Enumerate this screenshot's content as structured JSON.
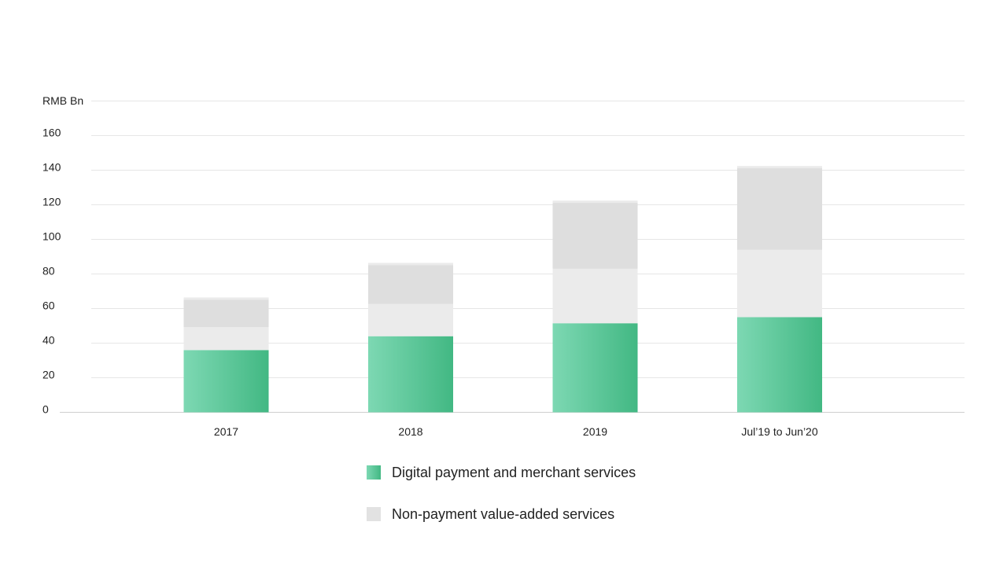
{
  "chart_data": {
    "type": "bar",
    "stacked": true,
    "unit_label": "RMB Bn",
    "categories": [
      "2017",
      "2018",
      "2019",
      "Jul’19 to Jun’20"
    ],
    "series": [
      {
        "name": "Digital payment and merchant services",
        "values": [
          36,
          44,
          51.5,
          55
        ],
        "color": "#4fc08f"
      },
      {
        "name": "Non-payment value-added services",
        "values": [
          29.5,
          41.5,
          70,
          86.5
        ],
        "color": "#e2e2e2"
      }
    ],
    "y_ticks": [
      "0",
      "20",
      "40",
      "60",
      "80",
      "100",
      "120",
      "140",
      "160"
    ],
    "ylim": [
      0,
      180
    ],
    "grid": true,
    "legend_position": "bottom"
  },
  "colors": {
    "green_start": "#7dd8b3",
    "green_end": "#42b883",
    "grey_light": "#ebebeb",
    "grey_mid": "#dedede",
    "grey_dark": "#d8d8d8",
    "grid": "#e6e6e6",
    "axis": "#cfcfcf"
  }
}
